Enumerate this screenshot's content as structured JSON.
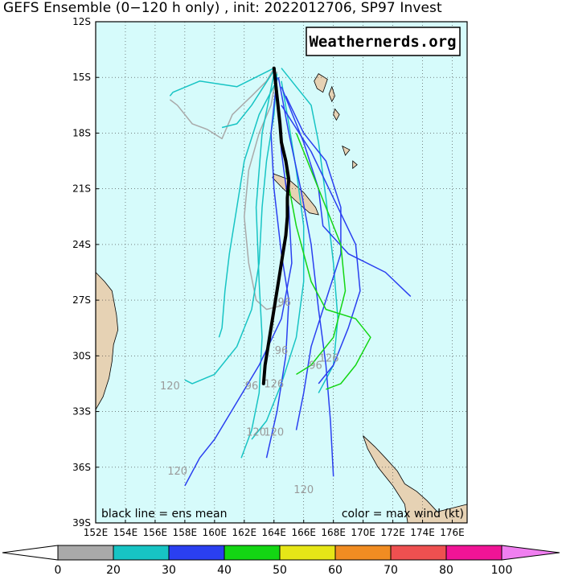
{
  "title": "GEFS Ensemble (0−120 h only) , init: 2022012706, SP97 Invest",
  "watermark": "Weathernerds.org",
  "legend_left": "black line = ens mean",
  "legend_right": "color = max wind (kt)",
  "colors": {
    "ocean": "#d6fbfb",
    "land": "#e6d2b4",
    "grid": "#3a3a3a",
    "mean": "#000000",
    "label_gray": "#9a9a9a"
  },
  "chart_data": {
    "type": "line",
    "title": "GEFS Ensemble (0−120 h only) , init: 2022012706, SP97 Invest",
    "lon_range": [
      152,
      177
    ],
    "lat_range": [
      -39,
      -12
    ],
    "lat_ticks": [
      "12S",
      "15S",
      "18S",
      "21S",
      "24S",
      "27S",
      "30S",
      "33S",
      "36S",
      "39S"
    ],
    "lon_ticks": [
      "152E",
      "154E",
      "156E",
      "158E",
      "160E",
      "162E",
      "164E",
      "166E",
      "168E",
      "170E",
      "172E",
      "174E",
      "176E"
    ],
    "colorbar": {
      "ticks": [
        "0",
        "20",
        "30",
        "40",
        "50",
        "60",
        "70",
        "80",
        "100"
      ],
      "colors": [
        "#a9a9a9",
        "#17c4c4",
        "#2a3ff0",
        "#13d613",
        "#e6e617",
        "#f08c22",
        "#ee5050",
        "#f01496"
      ],
      "left_arrow": "#ffffff",
      "right_arrow": "#f07ff0"
    },
    "ensemble_mean": [
      [
        164.0,
        -14.5
      ],
      [
        164.2,
        -16.0
      ],
      [
        164.4,
        -17.5
      ],
      [
        164.5,
        -18.5
      ],
      [
        164.8,
        -19.5
      ],
      [
        165.0,
        -20.5
      ],
      [
        164.9,
        -21.5
      ],
      [
        164.9,
        -22.5
      ],
      [
        164.8,
        -23.5
      ],
      [
        164.6,
        -24.5
      ],
      [
        164.4,
        -25.5
      ],
      [
        164.2,
        -26.5
      ],
      [
        164.0,
        -27.5
      ],
      [
        163.8,
        -28.5
      ],
      [
        163.6,
        -29.5
      ],
      [
        163.4,
        -30.5
      ],
      [
        163.3,
        -31.5
      ]
    ],
    "members": [
      {
        "color": "#a9a9a9",
        "points": [
          [
            164.0,
            -14.5
          ],
          [
            163.5,
            -15.2
          ],
          [
            162.5,
            -16.0
          ],
          [
            161.2,
            -17.0
          ],
          [
            160.5,
            -18.3
          ],
          [
            159.5,
            -17.8
          ],
          [
            158.5,
            -17.5
          ],
          [
            157.5,
            -16.5
          ],
          [
            157.0,
            -16.2
          ]
        ]
      },
      {
        "color": "#a9a9a9",
        "points": [
          [
            164.2,
            -14.7
          ],
          [
            163.8,
            -16.5
          ],
          [
            163.0,
            -18.0
          ],
          [
            162.3,
            -20.0
          ],
          [
            162.0,
            -22.5
          ],
          [
            162.3,
            -25.0
          ],
          [
            162.8,
            -27.0
          ],
          [
            163.5,
            -27.5
          ],
          [
            164.5,
            -27.3
          ]
        ]
      },
      {
        "color": "#17c4c4",
        "points": [
          [
            164.1,
            -14.5
          ],
          [
            162.5,
            -16.5
          ],
          [
            161.5,
            -17.5
          ],
          [
            160.5,
            -17.7
          ]
        ]
      },
      {
        "color": "#17c4c4",
        "points": [
          [
            164.0,
            -14.5
          ],
          [
            161.5,
            -15.5
          ],
          [
            159.0,
            -15.2
          ],
          [
            157.2,
            -15.8
          ],
          [
            157.0,
            -16.0
          ]
        ]
      },
      {
        "color": "#17c4c4",
        "points": [
          [
            164.3,
            -15.0
          ],
          [
            163.0,
            -17.0
          ],
          [
            162.0,
            -19.5
          ],
          [
            161.5,
            -22.0
          ],
          [
            161.0,
            -24.5
          ],
          [
            160.7,
            -26.5
          ],
          [
            160.5,
            -28.5
          ],
          [
            160.3,
            -29.0
          ]
        ]
      },
      {
        "color": "#17c4c4",
        "points": [
          [
            164.2,
            -14.8
          ],
          [
            164.0,
            -17.0
          ],
          [
            163.5,
            -19.5
          ],
          [
            163.2,
            -22.0
          ],
          [
            163.0,
            -25.0
          ],
          [
            162.5,
            -27.5
          ],
          [
            161.5,
            -29.5
          ],
          [
            160.0,
            -31.0
          ],
          [
            158.5,
            -31.5
          ],
          [
            158.0,
            -31.3
          ]
        ]
      },
      {
        "color": "#17c4c4",
        "points": [
          [
            164.5,
            -15.2
          ],
          [
            165.0,
            -17.5
          ],
          [
            165.5,
            -20.0
          ],
          [
            166.0,
            -23.0
          ],
          [
            166.0,
            -26.0
          ],
          [
            165.5,
            -29.0
          ],
          [
            164.5,
            -31.5
          ],
          [
            163.5,
            -33.5
          ],
          [
            162.5,
            -34.5
          ]
        ]
      },
      {
        "color": "#17c4c4",
        "points": [
          [
            164.5,
            -14.5
          ],
          [
            165.5,
            -15.5
          ],
          [
            166.5,
            -16.5
          ],
          [
            167.0,
            -18.5
          ],
          [
            167.5,
            -21.5
          ],
          [
            168.0,
            -25.0
          ],
          [
            168.3,
            -28.0
          ],
          [
            168.0,
            -30.5
          ],
          [
            167.0,
            -32.0
          ]
        ]
      },
      {
        "color": "#17c4c4",
        "points": [
          [
            164.0,
            -14.8
          ],
          [
            163.2,
            -18.0
          ],
          [
            162.8,
            -22.0
          ],
          [
            163.0,
            -26.0
          ],
          [
            163.2,
            -29.0
          ],
          [
            163.0,
            -32.0
          ],
          [
            162.5,
            -34.0
          ],
          [
            161.8,
            -35.5
          ]
        ]
      },
      {
        "color": "#2a3ff0",
        "points": [
          [
            164.3,
            -15.0
          ],
          [
            165.0,
            -18.0
          ],
          [
            165.8,
            -21.0
          ],
          [
            166.5,
            -24.0
          ],
          [
            167.0,
            -27.5
          ],
          [
            167.5,
            -30.5
          ],
          [
            167.8,
            -33.5
          ],
          [
            168.0,
            -36.5
          ]
        ]
      },
      {
        "color": "#2a3ff0",
        "points": [
          [
            164.5,
            -15.5
          ],
          [
            166.0,
            -18.5
          ],
          [
            167.0,
            -21.0
          ],
          [
            167.3,
            -23.0
          ],
          [
            169.0,
            -24.5
          ],
          [
            171.5,
            -25.5
          ],
          [
            173.2,
            -26.8
          ]
        ]
      },
      {
        "color": "#2a3ff0",
        "points": [
          [
            164.2,
            -15.5
          ],
          [
            164.5,
            -19.0
          ],
          [
            165.0,
            -22.0
          ],
          [
            165.2,
            -25.0
          ],
          [
            164.5,
            -28.0
          ],
          [
            163.0,
            -30.5
          ],
          [
            161.5,
            -32.5
          ],
          [
            160.0,
            -34.5
          ],
          [
            159.0,
            -35.5
          ],
          [
            158.0,
            -37.0
          ]
        ]
      },
      {
        "color": "#2a3ff0",
        "points": [
          [
            164.5,
            -16.5
          ],
          [
            166.5,
            -19.0
          ],
          [
            168.0,
            -21.5
          ],
          [
            169.5,
            -24.0
          ],
          [
            169.8,
            -26.5
          ],
          [
            169.0,
            -28.5
          ],
          [
            168.0,
            -30.5
          ],
          [
            167.0,
            -31.5
          ]
        ]
      },
      {
        "color": "#2a3ff0",
        "points": [
          [
            164.8,
            -16.0
          ],
          [
            166.0,
            -18.0
          ],
          [
            167.5,
            -19.5
          ],
          [
            168.5,
            -22.0
          ],
          [
            168.5,
            -24.5
          ],
          [
            167.5,
            -27.0
          ],
          [
            166.5,
            -29.5
          ],
          [
            166.0,
            -32.0
          ],
          [
            165.5,
            -34.0
          ]
        ]
      },
      {
        "color": "#2a3ff0",
        "points": [
          [
            164.2,
            -15.0
          ],
          [
            163.8,
            -18.0
          ],
          [
            164.0,
            -21.0
          ],
          [
            164.5,
            -24.5
          ],
          [
            165.0,
            -27.0
          ],
          [
            164.8,
            -30.0
          ],
          [
            164.2,
            -33.0
          ],
          [
            163.5,
            -35.5
          ]
        ]
      },
      {
        "color": "#13d613",
        "points": [
          [
            165.5,
            -18.0
          ],
          [
            167.0,
            -21.0
          ],
          [
            168.5,
            -24.0
          ],
          [
            168.8,
            -26.5
          ],
          [
            168.0,
            -29.0
          ],
          [
            166.5,
            -30.5
          ],
          [
            165.5,
            -31.0
          ]
        ]
      },
      {
        "color": "#13d613",
        "points": [
          [
            164.8,
            -20.0
          ],
          [
            165.5,
            -23.0
          ],
          [
            166.5,
            -26.0
          ],
          [
            167.5,
            -27.5
          ],
          [
            169.5,
            -28.0
          ],
          [
            170.5,
            -29.0
          ],
          [
            169.5,
            -30.5
          ],
          [
            168.5,
            -31.5
          ],
          [
            167.5,
            -31.8
          ]
        ]
      }
    ],
    "hour_labels": [
      {
        "text": "120",
        "lon": 157.0,
        "lat": -31.8
      },
      {
        "text": "120",
        "lon": 157.5,
        "lat": -36.4
      },
      {
        "text": "120",
        "lon": 162.8,
        "lat": -34.3
      },
      {
        "text": "120",
        "lon": 164.0,
        "lat": -34.3
      },
      {
        "text": "120",
        "lon": 166.0,
        "lat": -37.4
      },
      {
        "text": "96",
        "lon": 162.5,
        "lat": -31.8
      },
      {
        "text": "96",
        "lon": 166.8,
        "lat": -30.7
      },
      {
        "text": "96",
        "lon": 164.7,
        "lat": -27.3
      },
      {
        "text": "96",
        "lon": 164.5,
        "lat": -29.9
      },
      {
        "text": "126",
        "lon": 167.7,
        "lat": -30.3
      },
      {
        "text": "126",
        "lon": 164.0,
        "lat": -31.7
      }
    ],
    "land_masses": {
      "australia": [
        [
          152.0,
          -25.5
        ],
        [
          152.6,
          -26.0
        ],
        [
          153.1,
          -26.5
        ],
        [
          153.4,
          -27.8
        ],
        [
          153.5,
          -28.6
        ],
        [
          153.2,
          -29.4
        ],
        [
          153.1,
          -30.3
        ],
        [
          152.9,
          -31.2
        ],
        [
          152.5,
          -32.2
        ],
        [
          152.0,
          -32.9
        ]
      ],
      "new_zealand": [
        [
          170.0,
          -34.3
        ],
        [
          170.8,
          -34.9
        ],
        [
          171.5,
          -35.5
        ],
        [
          172.3,
          -36.2
        ],
        [
          172.8,
          -36.9
        ],
        [
          173.6,
          -37.3
        ],
        [
          174.3,
          -37.8
        ],
        [
          175.0,
          -38.4
        ],
        [
          176.0,
          -38.2
        ],
        [
          177.0,
          -38.0
        ],
        [
          177.0,
          -39.0
        ],
        [
          173.0,
          -39.0
        ],
        [
          172.8,
          -38.0
        ],
        [
          172.0,
          -37.0
        ],
        [
          171.0,
          -36.0
        ],
        [
          170.3,
          -35.0
        ]
      ],
      "new_caledonia": [
        [
          164.0,
          -20.2
        ],
        [
          165.0,
          -20.5
        ],
        [
          166.0,
          -21.2
        ],
        [
          166.8,
          -22.0
        ],
        [
          167.0,
          -22.4
        ],
        [
          166.4,
          -22.3
        ],
        [
          165.4,
          -21.6
        ],
        [
          164.5,
          -20.9
        ],
        [
          163.9,
          -20.4
        ]
      ],
      "vanuatu_1": [
        [
          167.0,
          -14.8
        ],
        [
          167.6,
          -15.1
        ],
        [
          167.3,
          -15.8
        ],
        [
          166.9,
          -15.6
        ],
        [
          166.7,
          -15.2
        ]
      ],
      "vanuatu_2": [
        [
          167.9,
          -15.5
        ],
        [
          168.1,
          -16.0
        ],
        [
          167.9,
          -16.3
        ],
        [
          167.7,
          -15.9
        ]
      ],
      "vanuatu_3": [
        [
          168.1,
          -16.7
        ],
        [
          168.4,
          -17.0
        ],
        [
          168.2,
          -17.3
        ],
        [
          168.0,
          -17.0
        ]
      ],
      "vanuatu_4": [
        [
          168.6,
          -18.7
        ],
        [
          169.1,
          -18.9
        ],
        [
          168.8,
          -19.2
        ]
      ],
      "vanuatu_5": [
        [
          169.3,
          -19.5
        ],
        [
          169.6,
          -19.7
        ],
        [
          169.3,
          -19.9
        ]
      ]
    }
  }
}
